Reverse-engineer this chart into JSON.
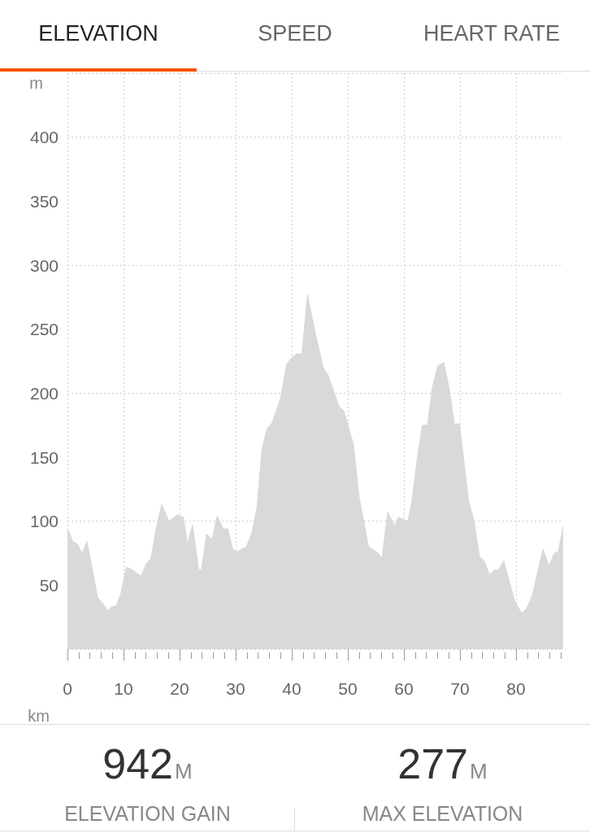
{
  "chart_data": {
    "type": "area",
    "title": "ELEVATION",
    "xlabel": "km",
    "ylabel": "m",
    "x": [
      0,
      1.0,
      1.8,
      2.6,
      3.5,
      5.4,
      6.3,
      7.1,
      7.8,
      8.7,
      9.5,
      10.5,
      11.6,
      13.1,
      14.1,
      14.9,
      15.8,
      16.8,
      18.1,
      19.6,
      20.7,
      21.4,
      22.3,
      23.4,
      23.9,
      24.8,
      25.8,
      26.7,
      27.8,
      28.6,
      29.5,
      30.2,
      31.9,
      32.9,
      33.8,
      34.7,
      35.6,
      36.5,
      38.0,
      39.1,
      40.1,
      41.0,
      41.8,
      42.8,
      44.1,
      45.6,
      46.5,
      48.4,
      49.3,
      51.0,
      52.0,
      53.7,
      55.4,
      56.1,
      57.1,
      57.8,
      58.3,
      59.0,
      60.7,
      61.4,
      62.4,
      63.3,
      64.2,
      65.0,
      66.0,
      67.1,
      68.1,
      69.0,
      69.9,
      71.5,
      72.5,
      73.5,
      74.3,
      75.3,
      76.1,
      76.9,
      77.8,
      79.8,
      81.0,
      81.9,
      82.9,
      84.1,
      84.8,
      85.9,
      86.8,
      87.5,
      88.4
    ],
    "values": [
      94,
      84,
      82,
      75,
      84,
      40,
      36,
      30,
      33,
      34,
      43,
      64,
      62,
      57,
      67,
      71,
      94,
      113,
      100,
      105,
      103,
      82,
      97,
      62,
      62,
      90,
      86,
      104,
      94,
      94,
      78,
      76,
      80,
      91,
      111,
      157,
      172,
      177,
      196,
      223,
      228,
      231,
      230,
      277,
      249,
      220,
      214,
      190,
      186,
      160,
      119,
      80,
      75,
      71,
      107,
      101,
      96,
      103,
      100,
      115,
      150,
      175,
      175,
      203,
      221,
      224,
      203,
      176,
      176,
      117,
      100,
      72,
      69,
      58,
      62,
      62,
      69,
      37,
      28,
      32,
      42,
      65,
      78,
      65,
      75,
      76,
      96
    ],
    "color": "#d9d9d9",
    "xlim": [
      0,
      88.4
    ],
    "xticks": [
      0,
      {
        "value": 2,
        "label": null
      },
      {
        "value": 4,
        "label": null
      },
      {
        "value": 6,
        "label": null
      },
      {
        "value": 8,
        "label": null
      },
      10,
      {
        "value": 12,
        "label": null
      },
      {
        "value": 14,
        "label": null
      },
      {
        "value": 16,
        "label": null
      },
      {
        "value": 18,
        "label": null
      },
      20,
      {
        "value": 22,
        "label": null
      },
      {
        "value": 24,
        "label": null
      },
      {
        "value": 26,
        "label": null
      },
      {
        "value": 28,
        "label": null
      },
      30,
      {
        "value": 32,
        "label": null
      },
      {
        "value": 34,
        "label": null
      },
      {
        "value": 36,
        "label": null
      },
      {
        "value": 38,
        "label": null
      },
      40,
      {
        "value": 42,
        "label": null
      },
      {
        "value": 44,
        "label": null
      },
      {
        "value": 46,
        "label": null
      },
      {
        "value": 48,
        "label": null
      },
      50,
      {
        "value": 52,
        "label": null
      },
      {
        "value": 54,
        "label": null
      },
      {
        "value": 56,
        "label": null
      },
      {
        "value": 58,
        "label": null
      },
      60,
      {
        "value": 62,
        "label": null
      },
      {
        "value": 64,
        "label": null
      },
      {
        "value": 66,
        "label": null
      },
      {
        "value": 68,
        "label": null
      },
      70,
      {
        "value": 72,
        "label": null
      },
      {
        "value": 74,
        "label": null
      },
      {
        "value": 76,
        "label": null
      },
      {
        "value": 78,
        "label": null
      },
      80,
      {
        "value": 82,
        "label": null
      },
      {
        "value": 84,
        "label": null
      },
      {
        "value": 86,
        "label": null
      },
      {
        "value": 88,
        "label": null
      }
    ],
    "ylim": [
      0,
      450
    ],
    "yticks": [
      50,
      100,
      150,
      200,
      250,
      300,
      350,
      400
    ],
    "grid": true,
    "annotations": [
      "SPEED",
      "HEART RATE",
      "942",
      "M",
      "ELEVATION GAIN",
      "277",
      "M",
      "MAX ELEVATION"
    ]
  }
}
